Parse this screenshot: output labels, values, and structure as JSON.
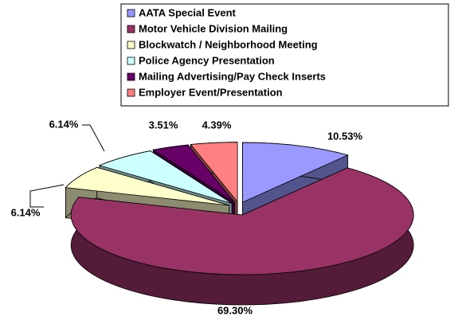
{
  "chart_data": {
    "type": "pie3d",
    "categories": [
      "AATA Special Event",
      "Motor Vehicle Division Mailing",
      "Blockwatch / Neighborhood Meeting",
      "Police Agency Presentation",
      "Mailing Advertising/Pay Check Inserts",
      "Employer Event/Presentation"
    ],
    "values": [
      10.53,
      69.3,
      6.14,
      6.14,
      3.51,
      4.39
    ],
    "value_labels": [
      "10.53%",
      "69.30%",
      "6.14%",
      "6.14%",
      "3.51%",
      "4.39%"
    ],
    "colors": [
      "#9999ff",
      "#993366",
      "#ffffcc",
      "#ccffff",
      "#660066",
      "#ff8080"
    ],
    "legend": "top"
  }
}
